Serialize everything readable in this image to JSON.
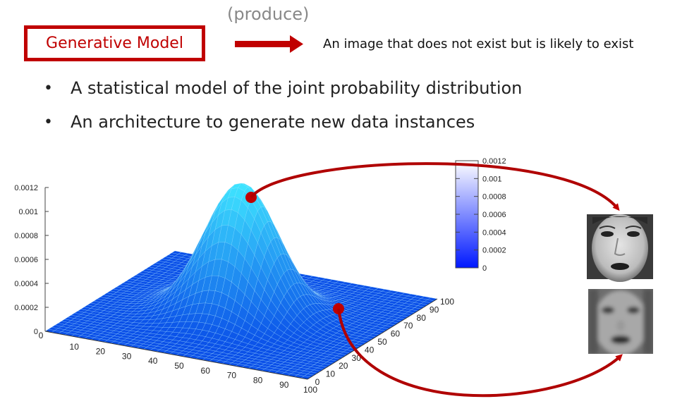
{
  "produce_label": "(produce)",
  "model_box": {
    "label": "Generative Model"
  },
  "output_description": "An image that does not exist but is likely to exist",
  "bullets": [
    "A statistical model of the joint probability distribution",
    "An architecture to generate new data instances"
  ],
  "chart_data": {
    "type": "surface",
    "z_ticks": [
      "0",
      "0.0002",
      "0.0004",
      "0.0006",
      "0.0008",
      "0.001",
      "0.0012"
    ],
    "x_ticks": [
      "0",
      "10",
      "20",
      "30",
      "40",
      "50",
      "60",
      "70",
      "80",
      "90",
      "100"
    ],
    "y_ticks": [
      "0",
      "10",
      "20",
      "30",
      "40",
      "50",
      "60",
      "70",
      "80",
      "90",
      "100"
    ],
    "colorbar_ticks": [
      "0",
      "0.0002",
      "0.0004",
      "0.0006",
      "0.0008",
      "0.001",
      "0.0012"
    ],
    "xlim": [
      0,
      100
    ],
    "ylim": [
      0,
      100
    ],
    "zlim": [
      0,
      0.0012
    ],
    "peak_center": [
      50,
      50
    ],
    "peak_value": 0.0011
  },
  "colors": {
    "accent": "#c00000",
    "surface_low": "#0a4fe8",
    "surface_high": "#3fe6ff"
  },
  "images": [
    {
      "name": "sharp-face-image"
    },
    {
      "name": "blurry-face-image"
    }
  ]
}
